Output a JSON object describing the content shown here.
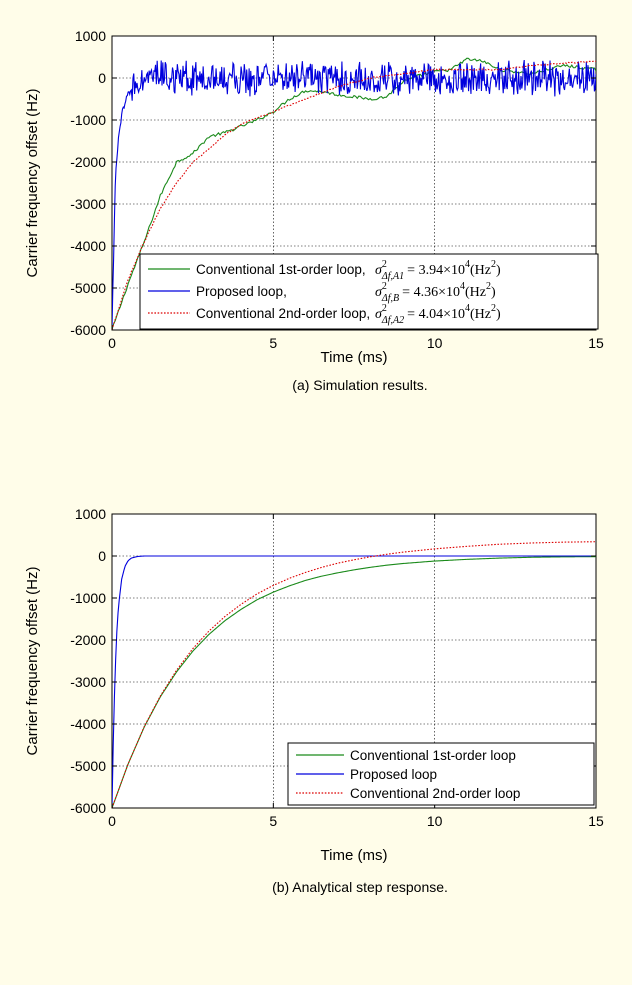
{
  "chart_data": [
    {
      "type": "line",
      "caption": "(a) Simulation results.",
      "xlabel": "Time (ms)",
      "ylabel": "Carrier frequency offset (Hz)",
      "xlim": [
        0,
        15
      ],
      "ylim": [
        -6000,
        1000
      ],
      "xticks": [
        0,
        5,
        10,
        15
      ],
      "yticks": [
        1000,
        0,
        -1000,
        -2000,
        -3000,
        -4000,
        -5000,
        -6000
      ],
      "grid": true,
      "legend_position": "bottom-right",
      "series": [
        {
          "name": "Conventional 1st-order loop",
          "color": "#1a8a1a",
          "style": "solid",
          "noisy": false,
          "x": [
            0,
            0.5,
            1,
            1.5,
            2,
            2.5,
            3,
            3.5,
            4,
            4.5,
            5,
            5.5,
            6,
            6.5,
            7,
            7.5,
            8,
            8.5,
            9,
            9.5,
            10,
            10.5,
            11,
            11.5,
            12,
            12.5,
            13,
            13.5,
            14,
            14.5,
            15
          ],
          "y": [
            -6000,
            -4900,
            -3900,
            -2800,
            -2000,
            -1800,
            -1400,
            -1300,
            -1150,
            -1000,
            -800,
            -500,
            -300,
            -320,
            -400,
            -450,
            -500,
            -450,
            -100,
            50,
            150,
            200,
            450,
            400,
            200,
            150,
            100,
            200,
            300,
            250,
            200
          ]
        },
        {
          "name": "Proposed loop",
          "color": "#0000dd",
          "style": "solid",
          "noisy": true,
          "x": [
            0,
            0.1,
            0.2,
            0.3,
            0.5,
            0.7,
            1,
            1.5,
            2,
            3,
            5,
            8,
            10,
            12,
            15
          ],
          "y": [
            -6000,
            -2500,
            -1400,
            -900,
            -400,
            -150,
            0,
            50,
            0,
            0,
            0,
            0,
            0,
            0,
            0
          ]
        },
        {
          "name": "Conventional 2nd-order loop",
          "color": "#dd0000",
          "style": "dotted",
          "noisy": false,
          "x": [
            0,
            0.5,
            1,
            1.5,
            2,
            2.5,
            3,
            3.5,
            4,
            4.5,
            5,
            5.5,
            6,
            6.5,
            7,
            7.5,
            8,
            9,
            10,
            11,
            12,
            13,
            14,
            15
          ],
          "y": [
            -6000,
            -4800,
            -3900,
            -3100,
            -2500,
            -2000,
            -1700,
            -1350,
            -1100,
            -950,
            -800,
            -650,
            -500,
            -350,
            -200,
            -100,
            0,
            100,
            200,
            200,
            200,
            300,
            350,
            400
          ]
        }
      ],
      "legend": [
        {
          "label": "Conventional 1st-order loop,",
          "sub": "Δf,A1",
          "value": "= 3.94×10",
          "exp": "4",
          "unit": "(Hz",
          "unit_exp": "2",
          "unit_end": ")"
        },
        {
          "label": "Proposed loop,",
          "sub": "Δf,B",
          "value": "= 4.36×10",
          "exp": "4",
          "unit": "(Hz",
          "unit_exp": "2",
          "unit_end": ")"
        },
        {
          "label": "Conventional 2nd-order loop,",
          "sub": "Δf,A2",
          "value": "= 4.04×10",
          "exp": "4",
          "unit": "(Hz",
          "unit_exp": "2",
          "unit_end": ")"
        }
      ]
    },
    {
      "type": "line",
      "caption": "(b) Analytical step response.",
      "xlabel": "Time (ms)",
      "ylabel": "Carrier frequency offset (Hz)",
      "xlim": [
        0,
        15
      ],
      "ylim": [
        -6000,
        1000
      ],
      "xticks": [
        0,
        5,
        10,
        15
      ],
      "yticks": [
        1000,
        0,
        -1000,
        -2000,
        -3000,
        -4000,
        -5000,
        -6000
      ],
      "grid": true,
      "legend_position": "bottom-right",
      "series": [
        {
          "name": "Conventional 1st-order loop",
          "color": "#1a8a1a",
          "style": "solid",
          "x": [
            0,
            0.5,
            1,
            1.5,
            2,
            2.5,
            3,
            3.5,
            4,
            4.5,
            5,
            5.5,
            6,
            6.5,
            7,
            7.5,
            8,
            8.5,
            9,
            9.5,
            10,
            11,
            12,
            13,
            14,
            15
          ],
          "y": [
            -6000,
            -4950,
            -4070,
            -3350,
            -2760,
            -2270,
            -1870,
            -1540,
            -1270,
            -1040,
            -860,
            -710,
            -580,
            -480,
            -400,
            -330,
            -270,
            -220,
            -180,
            -150,
            -120,
            -80,
            -50,
            -30,
            -20,
            -15
          ]
        },
        {
          "name": "Proposed loop",
          "color": "#0000dd",
          "style": "solid",
          "x": [
            0,
            0.05,
            0.1,
            0.15,
            0.2,
            0.3,
            0.4,
            0.5,
            0.6,
            0.8,
            1,
            1.5,
            15
          ],
          "y": [
            -6000,
            -4000,
            -2700,
            -1800,
            -1200,
            -550,
            -250,
            -110,
            -50,
            -10,
            0,
            0,
            0
          ]
        },
        {
          "name": "Conventional 2nd-order loop",
          "color": "#dd0000",
          "style": "dotted",
          "x": [
            0,
            0.5,
            1,
            1.5,
            2,
            2.5,
            3,
            3.5,
            4,
            4.5,
            5,
            5.5,
            6,
            6.5,
            7,
            7.5,
            8,
            8.5,
            9,
            10,
            11,
            12,
            13,
            14,
            15
          ],
          "y": [
            -6000,
            -4950,
            -4060,
            -3330,
            -2720,
            -2210,
            -1790,
            -1440,
            -1150,
            -900,
            -700,
            -530,
            -390,
            -270,
            -170,
            -90,
            -20,
            40,
            90,
            170,
            230,
            280,
            310,
            330,
            340
          ]
        }
      ],
      "legend": [
        {
          "label": "Conventional 1st-order loop"
        },
        {
          "label": "Proposed loop"
        },
        {
          "label": "Conventional 2nd-order loop"
        }
      ]
    }
  ]
}
